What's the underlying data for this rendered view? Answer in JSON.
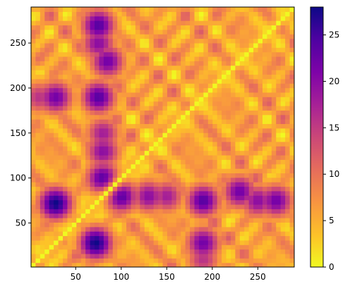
{
  "chart_data": {
    "type": "heatmap",
    "title": "",
    "xlabel": "",
    "ylabel": "",
    "xlim": [
      1,
      290
    ],
    "ylim": [
      1,
      290
    ],
    "x_ticks": [
      50,
      100,
      150,
      200,
      250
    ],
    "y_ticks": [
      50,
      100,
      150,
      200,
      250
    ],
    "origin": "lower",
    "colormap": "plasma_r",
    "colorbar": {
      "min": 0,
      "max": 28,
      "ticks": [
        0,
        5,
        10,
        15,
        20,
        25
      ]
    },
    "diagonal_value": 0,
    "features": [
      {
        "x": 28,
        "y": 72,
        "value": 28
      },
      {
        "x": 72,
        "y": 28,
        "value": 28
      },
      {
        "x": 190,
        "y": 28,
        "value": 22
      },
      {
        "x": 28,
        "y": 190,
        "value": 22
      },
      {
        "x": 75,
        "y": 190,
        "value": 24
      },
      {
        "x": 190,
        "y": 75,
        "value": 24
      },
      {
        "x": 75,
        "y": 270,
        "value": 24
      },
      {
        "x": 270,
        "y": 75,
        "value": 22
      },
      {
        "x": 85,
        "y": 230,
        "value": 22
      },
      {
        "x": 230,
        "y": 85,
        "value": 22
      },
      {
        "x": 130,
        "y": 80,
        "value": 20
      },
      {
        "x": 80,
        "y": 130,
        "value": 20
      },
      {
        "x": 150,
        "y": 80,
        "value": 18
      },
      {
        "x": 80,
        "y": 150,
        "value": 18
      },
      {
        "x": 250,
        "y": 75,
        "value": 20
      },
      {
        "x": 75,
        "y": 250,
        "value": 20
      },
      {
        "x": 190,
        "y": 10,
        "value": 16
      },
      {
        "x": 10,
        "y": 190,
        "value": 16
      },
      {
        "x": 80,
        "y": 100,
        "value": 24
      },
      {
        "x": 100,
        "y": 80,
        "value": 24
      }
    ]
  }
}
